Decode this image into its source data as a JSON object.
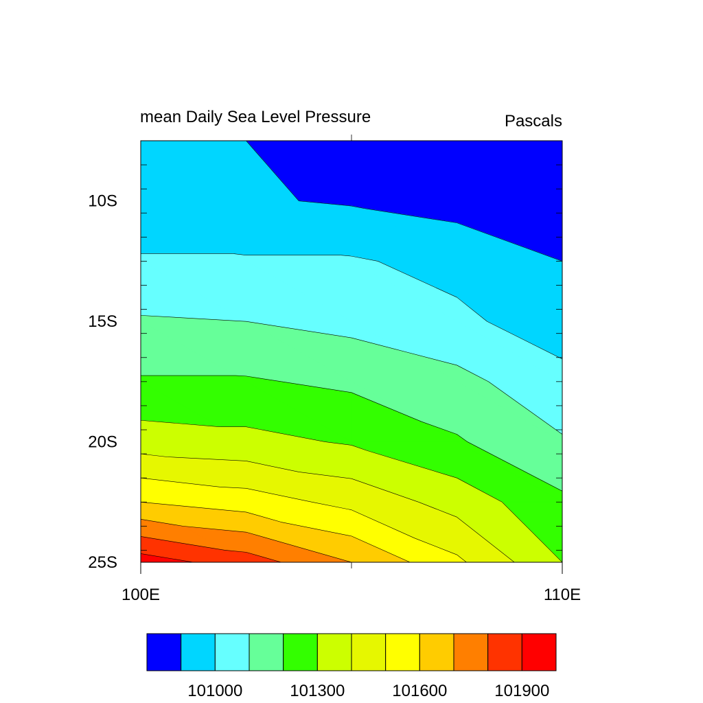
{
  "chart_data": {
    "type": "filled-contour",
    "title": "mean Daily Sea Level Pressure",
    "units": "Pascals",
    "xlabel": "",
    "ylabel": "",
    "xlim": [
      100,
      110
    ],
    "ylim": [
      -25,
      -7.5
    ],
    "x_ticks": [
      {
        "value": 100,
        "label": "100E"
      },
      {
        "value": 110,
        "label": "110E"
      }
    ],
    "y_ticks": [
      {
        "value": -10,
        "label": "10S"
      },
      {
        "value": -15,
        "label": "15S"
      },
      {
        "value": -20,
        "label": "20S"
      },
      {
        "value": -25,
        "label": "25S"
      }
    ],
    "grid_x": [
      100,
      102.5,
      105,
      107.5,
      110
    ],
    "grid_y": [
      -7.5,
      -10,
      -12.5,
      -15,
      -17.5,
      -20,
      -22.5,
      -25
    ],
    "values": [
      [
        100900,
        100900,
        100900,
        100870,
        100770
      ],
      [
        100930,
        100910,
        100890,
        100860,
        100820
      ],
      [
        101010,
        101010,
        101010,
        100970,
        100900
      ],
      [
        101110,
        101100,
        101070,
        101020,
        100950
      ],
      [
        101210,
        101210,
        101180,
        101130,
        101030
      ],
      [
        101350,
        101330,
        101290,
        101210,
        101110
      ],
      [
        101600,
        101550,
        101470,
        101360,
        101220
      ],
      [
        101950,
        101850,
        101700,
        101520,
        101300
      ]
    ],
    "contour_levels": [
      100900,
      101000,
      101100,
      101200,
      101300,
      101400,
      101500,
      101600,
      101700,
      101800,
      101900
    ],
    "fill_colors": [
      "#0000ff",
      "#00d6ff",
      "#66ffff",
      "#66ff99",
      "#33ff00",
      "#ccff00",
      "#e6f700",
      "#ffff00",
      "#ffcc00",
      "#ff7f00",
      "#ff3300",
      "#ff0000"
    ],
    "legend": {
      "position": "bottom",
      "tick_labels": [
        {
          "after_box": 2,
          "label": "101000"
        },
        {
          "after_box": 5,
          "label": "101300"
        },
        {
          "after_box": 8,
          "label": "101600"
        },
        {
          "after_box": 11,
          "label": "101900"
        }
      ]
    }
  }
}
